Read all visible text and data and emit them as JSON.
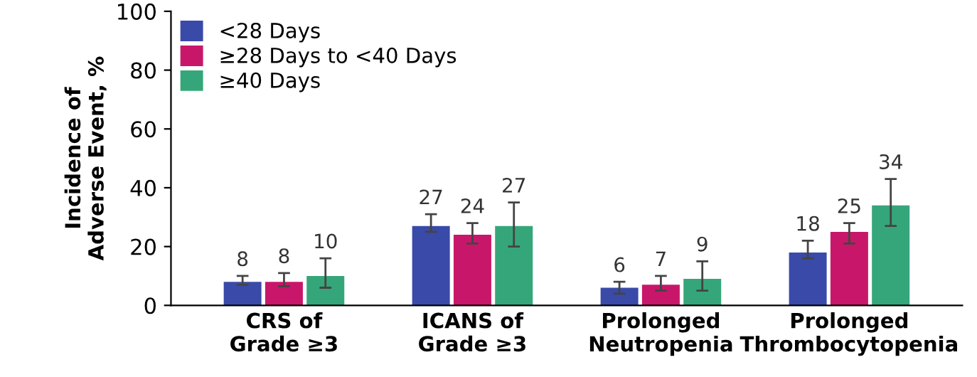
{
  "chart_data": {
    "type": "bar",
    "ylabel": "Incidence of\nAdverse Event, %",
    "categories": [
      "CRS of\nGrade ≥3",
      "ICANS of\nGrade ≥3",
      "Prolonged\nNeutropenia",
      "Prolonged\nThrombocytopenia"
    ],
    "series": [
      {
        "name": "<28 Days",
        "color": "#3a4aa8",
        "values": [
          8,
          27,
          6,
          18
        ],
        "errors": [
          [
            7,
            10
          ],
          [
            25,
            31
          ],
          [
            4,
            8
          ],
          [
            16,
            22
          ]
        ]
      },
      {
        "name": "≥28 Days to <40 Days",
        "color": "#c8176a",
        "values": [
          8,
          24,
          7,
          25
        ],
        "errors": [
          [
            6.5,
            11
          ],
          [
            21,
            28
          ],
          [
            5,
            10
          ],
          [
            21,
            28
          ]
        ]
      },
      {
        "name": "≥40 Days",
        "color": "#35a67a",
        "values": [
          10,
          27,
          9,
          34
        ],
        "errors": [
          [
            6,
            16
          ],
          [
            20,
            35
          ],
          [
            5,
            15
          ],
          [
            27,
            43
          ]
        ]
      }
    ],
    "ylim": [
      0,
      100
    ],
    "yticks": [
      0,
      20,
      40,
      60,
      80,
      100
    ],
    "data_labels": true,
    "legend": "top left",
    "grid": false
  }
}
